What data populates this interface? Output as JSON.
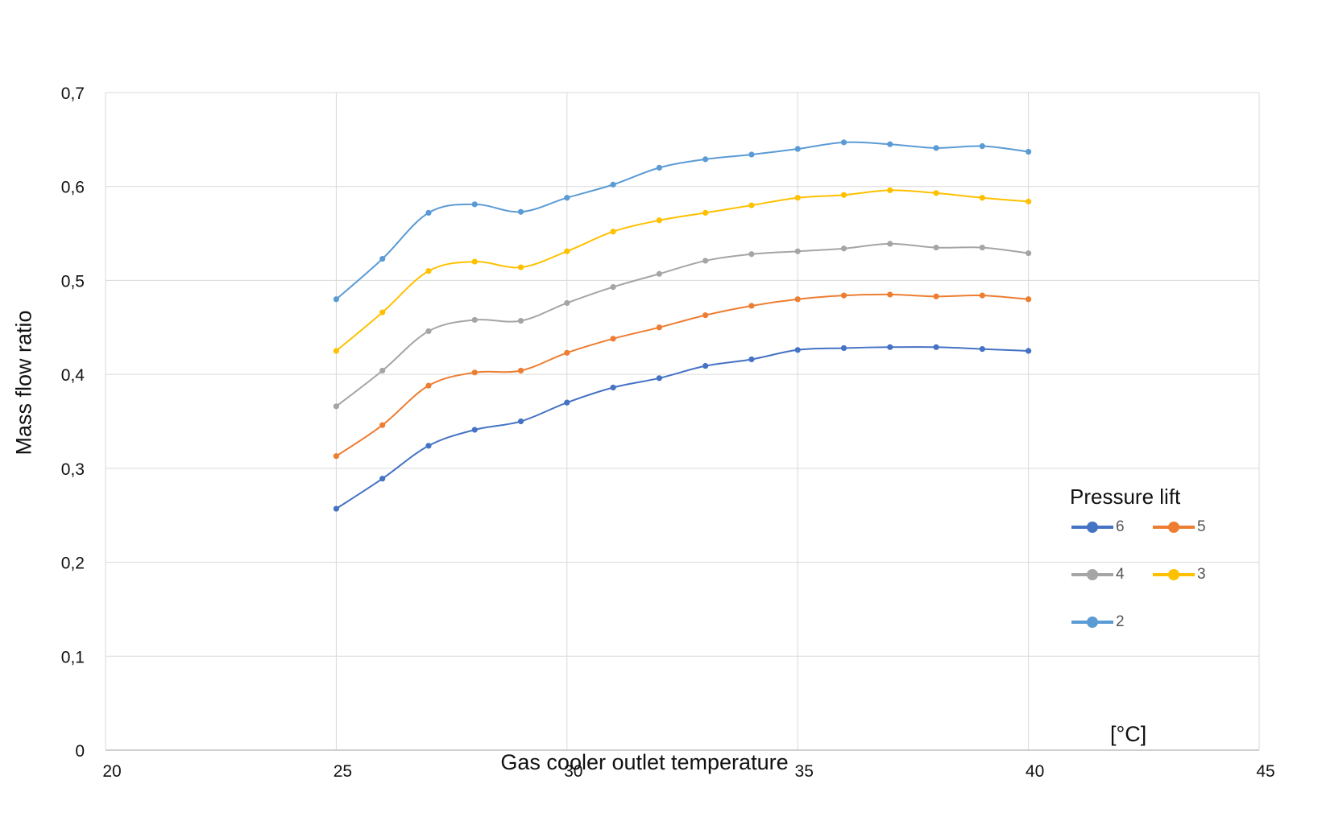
{
  "chart_data": {
    "type": "line",
    "title": "",
    "xlabel": "Gas cooler outlet temperature",
    "x_unit": "[°C]",
    "ylabel": "Mass flow ratio",
    "xlim": [
      20,
      45
    ],
    "ylim": [
      0,
      0.7
    ],
    "x_ticks": [
      "20",
      "25",
      "30",
      "35",
      "40",
      "45"
    ],
    "y_ticks": [
      "0",
      "0,1",
      "0,2",
      "0,3",
      "0,4",
      "0,5",
      "0,6",
      "0,7"
    ],
    "grid": true,
    "smooth": true,
    "legend_title": "Pressure lift",
    "legend_position": "right-inside",
    "x": [
      25,
      26,
      27,
      28,
      29,
      30,
      31,
      32,
      33,
      34,
      35,
      36,
      37,
      38,
      39,
      40
    ],
    "series": [
      {
        "name": "6",
        "color": "#4472c4",
        "values": [
          0.257,
          0.289,
          0.324,
          0.341,
          0.35,
          0.37,
          0.386,
          0.396,
          0.409,
          0.416,
          0.426,
          0.428,
          0.429,
          0.429,
          0.427,
          0.425
        ]
      },
      {
        "name": "5",
        "color": "#ed7d31",
        "values": [
          0.313,
          0.346,
          0.388,
          0.402,
          0.404,
          0.423,
          0.438,
          0.45,
          0.463,
          0.473,
          0.48,
          0.484,
          0.485,
          0.483,
          0.484,
          0.48
        ]
      },
      {
        "name": "4",
        "color": "#a5a5a5",
        "values": [
          0.366,
          0.404,
          0.446,
          0.458,
          0.457,
          0.476,
          0.493,
          0.507,
          0.521,
          0.528,
          0.531,
          0.534,
          0.539,
          0.535,
          0.535,
          0.529
        ]
      },
      {
        "name": "3",
        "color": "#ffc000",
        "values": [
          0.425,
          0.466,
          0.51,
          0.52,
          0.514,
          0.531,
          0.552,
          0.564,
          0.572,
          0.58,
          0.588,
          0.591,
          0.596,
          0.593,
          0.588,
          0.584
        ]
      },
      {
        "name": "2",
        "color": "#5b9bd5",
        "values": [
          0.48,
          0.523,
          0.572,
          0.581,
          0.573,
          0.588,
          0.602,
          0.62,
          0.629,
          0.634,
          0.64,
          0.647,
          0.645,
          0.641,
          0.643,
          0.637
        ]
      }
    ]
  },
  "legend": {
    "title": "Pressure lift",
    "items": [
      {
        "label": "6",
        "color": "#4472c4"
      },
      {
        "label": "5",
        "color": "#ed7d31"
      },
      {
        "label": "4",
        "color": "#a5a5a5"
      },
      {
        "label": "3",
        "color": "#ffc000"
      },
      {
        "label": "2",
        "color": "#5b9bd5"
      }
    ]
  },
  "axes": {
    "xlabel": "Gas cooler outlet temperature",
    "unit": "[°C]",
    "ylabel": "Mass flow ratio"
  }
}
